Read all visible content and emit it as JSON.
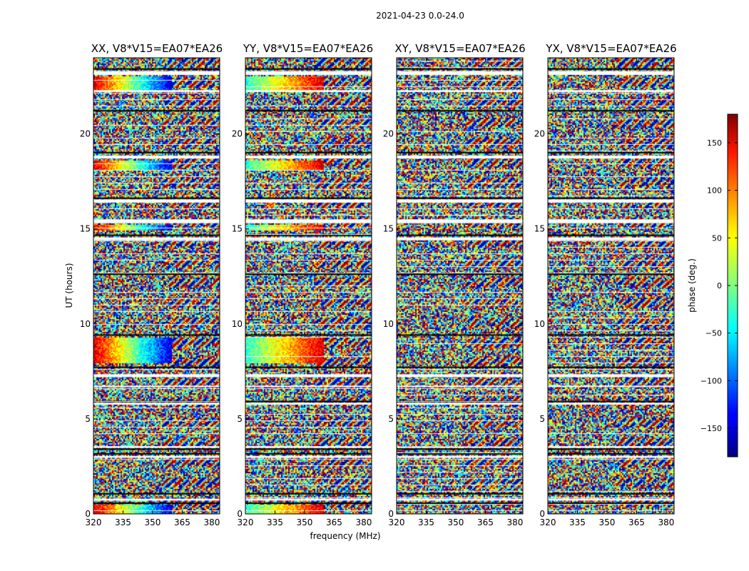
{
  "figure": {
    "suptitle": "2021-04-23 0.0-24.0",
    "xlabel": "frequency (MHz)",
    "ylabel": "UT (hours)",
    "colorbar_label": "phase (deg.)",
    "colorbar_ticks": [
      "150",
      "100",
      "50",
      "0",
      "−50",
      "−100",
      "−150"
    ],
    "colorbar_tick_values": [
      150,
      100,
      50,
      0,
      -50,
      -100,
      -150
    ],
    "colorbar_range": [
      -180,
      180
    ],
    "colormap": "jet"
  },
  "chart_data": [
    {
      "type": "heatmap",
      "title": "XX, V8*V15=EA07*EA26",
      "xlabel": "",
      "ylabel": "UT (hours)",
      "x_ticks": [
        "320",
        "335",
        "350",
        "365",
        "380"
      ],
      "x_tick_values": [
        320,
        335,
        350,
        365,
        380
      ],
      "y_ticks": [
        "0",
        "5",
        "10",
        "15",
        "20"
      ],
      "y_tick_values": [
        0,
        5,
        10,
        15,
        20
      ],
      "xlim": [
        320,
        384
      ],
      "ylim": [
        0,
        24
      ],
      "value": "phase (deg.)",
      "vmin": -180,
      "vmax": 180,
      "coherent_bands": [
        {
          "ut": [
            0.0,
            0.5
          ],
          "freq": [
            320,
            360
          ],
          "phase": [
            150,
            -150
          ]
        },
        {
          "ut": [
            7.9,
            9.3
          ],
          "freq": [
            320,
            360
          ],
          "phase": [
            150,
            -150
          ]
        },
        {
          "ut": [
            14.9,
            15.2
          ],
          "freq": [
            320,
            360
          ],
          "phase": [
            150,
            -150
          ]
        },
        {
          "ut": [
            18.1,
            18.6
          ],
          "freq": [
            320,
            360
          ],
          "phase": [
            150,
            -150
          ]
        },
        {
          "ut": [
            22.3,
            23.0
          ],
          "freq": [
            320,
            360
          ],
          "phase": [
            150,
            -150
          ]
        }
      ]
    },
    {
      "type": "heatmap",
      "title": "YY, V8*V15=EA07*EA26",
      "xlabel": "frequency (MHz)",
      "ylabel": "",
      "x_ticks": [
        "320",
        "335",
        "350",
        "365",
        "380"
      ],
      "x_tick_values": [
        320,
        335,
        350,
        365,
        380
      ],
      "y_ticks": [
        "0",
        "5",
        "10",
        "15",
        "20"
      ],
      "y_tick_values": [
        0,
        5,
        10,
        15,
        20
      ],
      "xlim": [
        320,
        384
      ],
      "ylim": [
        0,
        24
      ],
      "value": "phase (deg.)",
      "vmin": -180,
      "vmax": 180,
      "coherent_bands": [
        {
          "ut": [
            0.0,
            0.5
          ],
          "freq": [
            320,
            360
          ],
          "phase": [
            -30,
            150
          ]
        },
        {
          "ut": [
            7.9,
            9.3
          ],
          "freq": [
            320,
            360
          ],
          "phase": [
            -30,
            150
          ]
        },
        {
          "ut": [
            14.9,
            15.2
          ],
          "freq": [
            320,
            360
          ],
          "phase": [
            -30,
            150
          ]
        },
        {
          "ut": [
            18.1,
            18.6
          ],
          "freq": [
            320,
            360
          ],
          "phase": [
            -30,
            150
          ]
        },
        {
          "ut": [
            22.3,
            23.0
          ],
          "freq": [
            320,
            360
          ],
          "phase": [
            -30,
            150
          ]
        }
      ]
    },
    {
      "type": "heatmap",
      "title": "XY, V8*V15=EA07*EA26",
      "xlabel": "",
      "ylabel": "",
      "x_ticks": [
        "320",
        "335",
        "350",
        "365",
        "380"
      ],
      "x_tick_values": [
        320,
        335,
        350,
        365,
        380
      ],
      "y_ticks": [
        "0",
        "5",
        "10",
        "15",
        "20"
      ],
      "y_tick_values": [
        0,
        5,
        10,
        15,
        20
      ],
      "xlim": [
        320,
        384
      ],
      "ylim": [
        0,
        24
      ],
      "value": "phase (deg.)",
      "vmin": -180,
      "vmax": 180,
      "coherent_bands": []
    },
    {
      "type": "heatmap",
      "title": "YX, V8*V15=EA07*EA26",
      "xlabel": "",
      "ylabel": "",
      "x_ticks": [
        "320",
        "335",
        "350",
        "365",
        "380"
      ],
      "x_tick_values": [
        320,
        335,
        350,
        365,
        380
      ],
      "y_ticks": [
        "0",
        "5",
        "10",
        "15",
        "20"
      ],
      "y_tick_values": [
        0,
        5,
        10,
        15,
        20
      ],
      "xlim": [
        320,
        384
      ],
      "ylim": [
        0,
        24
      ],
      "value": "phase (deg.)",
      "vmin": -180,
      "vmax": 180,
      "coherent_bands": []
    }
  ],
  "blank_rows_ut": [
    [
      0.7,
      0.8
    ],
    [
      2.95,
      3.05
    ],
    [
      3.5,
      3.55
    ],
    [
      5.75,
      5.85
    ],
    [
      6.7,
      6.75
    ],
    [
      7.2,
      7.35
    ],
    [
      14.4,
      14.55
    ],
    [
      15.3,
      15.5
    ],
    [
      16.4,
      16.55
    ],
    [
      18.7,
      18.85
    ],
    [
      22.2,
      22.3
    ],
    [
      23.1,
      23.3
    ]
  ],
  "dark_rows_ut": [
    [
      0.55,
      0.6
    ],
    [
      1.05,
      1.1
    ],
    [
      3.1,
      3.2
    ],
    [
      3.4,
      3.45
    ],
    [
      5.9,
      5.95
    ],
    [
      7.7,
      7.75
    ],
    [
      9.35,
      9.45
    ],
    [
      12.6,
      12.65
    ],
    [
      14.6,
      14.7
    ],
    [
      16.6,
      16.65
    ],
    [
      19.0,
      19.05
    ],
    [
      21.2,
      21.25
    ],
    [
      23.4,
      23.45
    ]
  ]
}
